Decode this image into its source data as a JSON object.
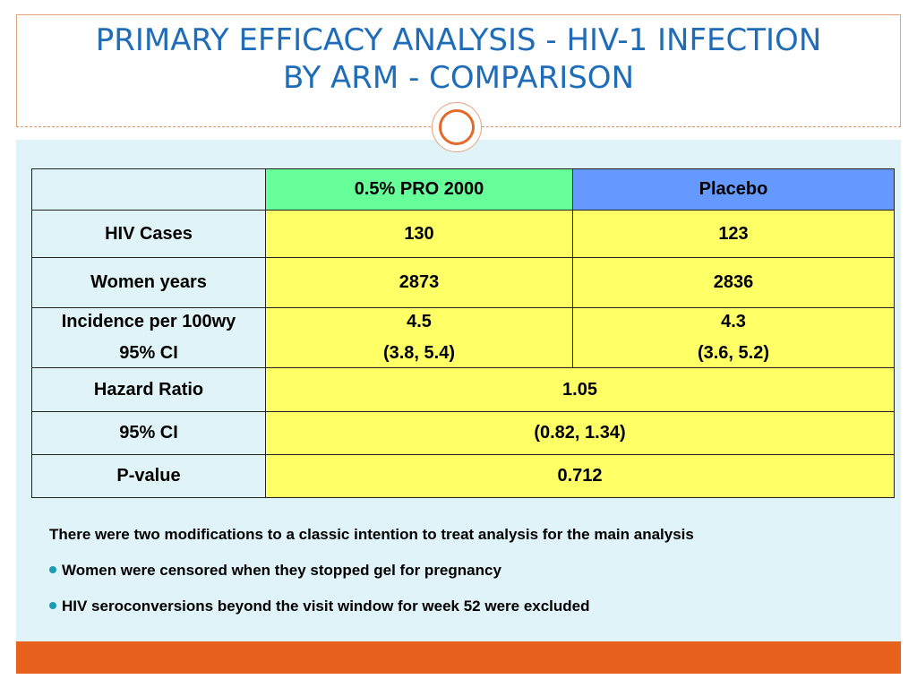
{
  "slide": {
    "title_line1": "PRIMARY EFFICACY ANALYSIS - HIV-1 INFECTION",
    "title_line2": "BY ARM - COMPARISON",
    "accent_color": "#e8621e",
    "title_color": "#1f6cb8"
  },
  "table": {
    "headers": [
      "",
      "0.5% PRO 2000",
      "Placebo"
    ],
    "rows": {
      "hiv_cases": {
        "label": "HIV Cases",
        "pro2000": "130",
        "placebo": "123"
      },
      "women_years": {
        "label": "Women years",
        "pro2000": "2873",
        "placebo": "2836"
      },
      "incidence": {
        "label": "Incidence per 100wy",
        "label_ci": "95% CI",
        "pro2000": "4.5",
        "pro2000_ci": "(3.8, 5.4)",
        "placebo": "4.3",
        "placebo_ci": "(3.6, 5.2)"
      },
      "hazard_ratio": {
        "label": "Hazard Ratio",
        "value": "1.05"
      },
      "hr_ci": {
        "label": "95% CI",
        "value": "(0.82, 1.34)"
      },
      "p_value": {
        "label": "P-value",
        "value": "0.712"
      }
    },
    "colors": {
      "pro2000_header": "#66ff99",
      "placebo_header": "#6699ff",
      "cell": "#ffff66"
    }
  },
  "notes": {
    "intro": "There were two modifications to a classic intention to treat analysis for the main analysis",
    "bullets": [
      "Women were censored when they stopped gel for pregnancy",
      "HIV seroconversions beyond the visit window for week 52 were excluded"
    ]
  }
}
